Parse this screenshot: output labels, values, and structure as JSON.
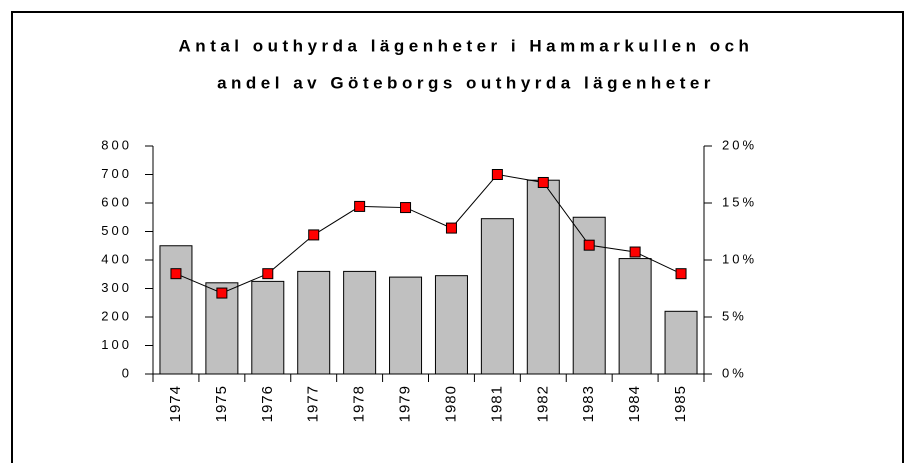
{
  "chart_data": {
    "type": "bar_line",
    "title": [
      "Antal outhyrda lägenheter i Hammarkullen och",
      "andel av Göteborgs outhyrda lägenheter"
    ],
    "categories": [
      "1974",
      "1975",
      "1976",
      "1977",
      "1978",
      "1979",
      "1980",
      "1981",
      "1982",
      "1983",
      "1984",
      "1985"
    ],
    "series": [
      {
        "type": "bar",
        "color": "#c0c0c0",
        "values": [
          450,
          320,
          325,
          360,
          360,
          340,
          345,
          545,
          680,
          550,
          405,
          220
        ]
      },
      {
        "type": "line",
        "axis": "y2",
        "color": "#ff0000",
        "values": [
          8.8,
          7.1,
          8.8,
          12.2,
          14.7,
          14.6,
          12.8,
          17.5,
          16.8,
          11.3,
          10.7,
          8.8
        ]
      }
    ],
    "ylim": [
      0,
      800
    ],
    "yticks": [
      0,
      100,
      200,
      300,
      400,
      500,
      600,
      700,
      800
    ],
    "y2lim": [
      0,
      20
    ],
    "y2ticks": [
      {
        "value": 0,
        "label": "0%"
      },
      {
        "value": 5,
        "label": "5%"
      },
      {
        "value": 10,
        "label": "10%"
      },
      {
        "value": 15,
        "label": "15%"
      },
      {
        "value": 20,
        "label": "20%"
      }
    ]
  }
}
